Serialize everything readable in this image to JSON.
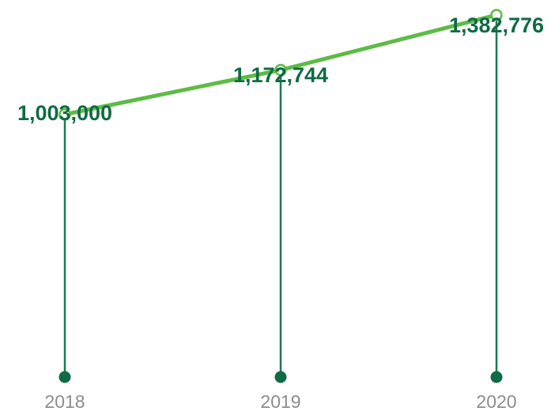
{
  "chart_data": {
    "type": "line",
    "categories": [
      "2018",
      "2019",
      "2020"
    ],
    "series": [
      {
        "values": [
          1003000,
          1172744,
          1382776
        ]
      }
    ],
    "data_labels": [
      "1,003,000",
      "1,172,744",
      "1,382,776"
    ],
    "title": "",
    "xlabel": "",
    "ylabel": "",
    "ylim": [
      0,
      1440000
    ],
    "grid": false,
    "legend": "none",
    "colors": {
      "line": "#5dbb46",
      "marker_fill": "#ffffff",
      "stem": "#1a7a4c",
      "base_dot": "#0f6b44",
      "data_label": "#0f6b44",
      "tick_label": "#8c8c8c"
    }
  }
}
